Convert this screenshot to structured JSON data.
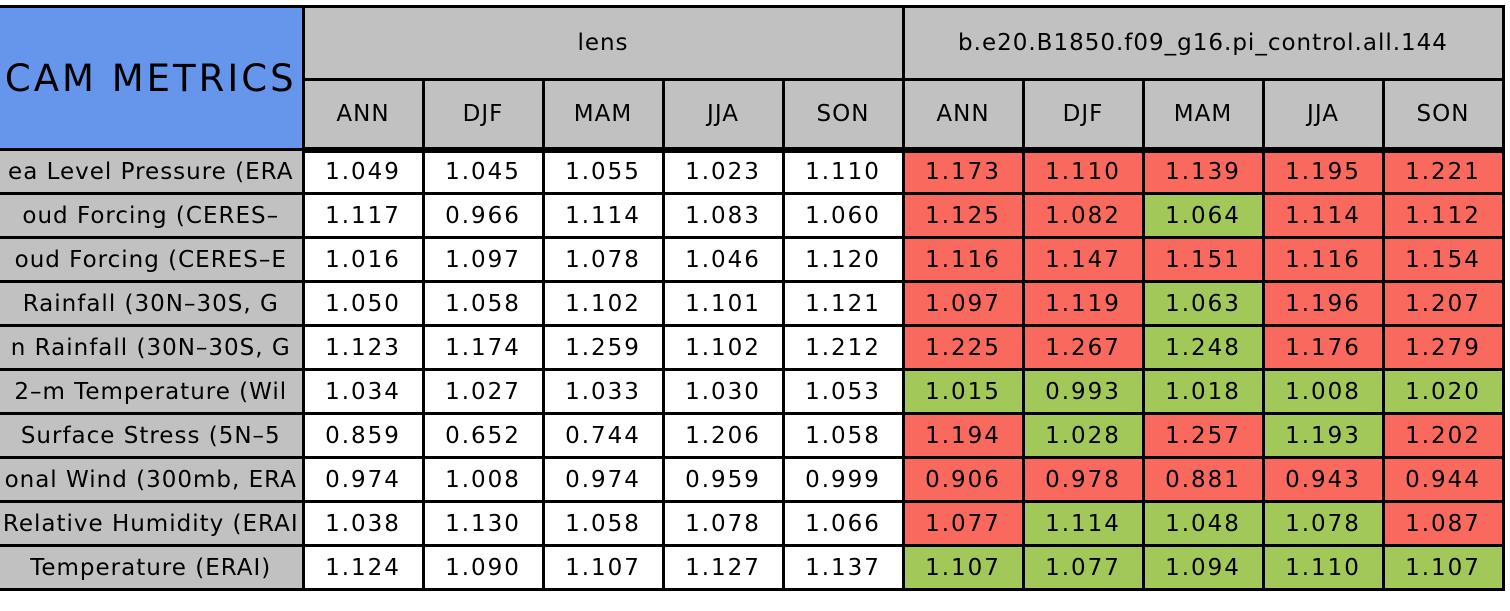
{
  "colors": {
    "title_bg": "#6596ec",
    "header_bg": "#c1c1c1",
    "label_bg": "#c1c1c1",
    "lens_cell_bg": "#ffffff",
    "red_cell": "#fa695e",
    "green_cell": "#a1c859",
    "border": "#000000"
  },
  "chart_data": {
    "type": "table",
    "title": "CAM METRICS",
    "column_groups": [
      {
        "label": "lens"
      },
      {
        "label": "b.e20.B1850.f09_g16.pi_control.all.144"
      }
    ],
    "columns": [
      "ANN",
      "DJF",
      "MAM",
      "JJA",
      "SON",
      "ANN",
      "DJF",
      "MAM",
      "JJA",
      "SON"
    ],
    "rows": [
      {
        "label": "ea Level Pressure (ERA",
        "lens": [
          "1.049",
          "1.045",
          "1.055",
          "1.023",
          "1.110"
        ],
        "control": [
          "1.173",
          "1.110",
          "1.139",
          "1.195",
          "1.221"
        ],
        "control_status": [
          "red",
          "red",
          "red",
          "red",
          "red"
        ]
      },
      {
        "label": "oud Forcing (CERES–",
        "lens": [
          "1.117",
          "0.966",
          "1.114",
          "1.083",
          "1.060"
        ],
        "control": [
          "1.125",
          "1.082",
          "1.064",
          "1.114",
          "1.112"
        ],
        "control_status": [
          "red",
          "red",
          "green",
          "red",
          "red"
        ]
      },
      {
        "label": "oud Forcing (CERES–E",
        "lens": [
          "1.016",
          "1.097",
          "1.078",
          "1.046",
          "1.120"
        ],
        "control": [
          "1.116",
          "1.147",
          "1.151",
          "1.116",
          "1.154"
        ],
        "control_status": [
          "red",
          "red",
          "red",
          "red",
          "red"
        ]
      },
      {
        "label": "Rainfall (30N–30S, G",
        "lens": [
          "1.050",
          "1.058",
          "1.102",
          "1.101",
          "1.121"
        ],
        "control": [
          "1.097",
          "1.119",
          "1.063",
          "1.196",
          "1.207"
        ],
        "control_status": [
          "red",
          "red",
          "green",
          "red",
          "red"
        ]
      },
      {
        "label": "n Rainfall (30N–30S, G",
        "lens": [
          "1.123",
          "1.174",
          "1.259",
          "1.102",
          "1.212"
        ],
        "control": [
          "1.225",
          "1.267",
          "1.248",
          "1.176",
          "1.279"
        ],
        "control_status": [
          "red",
          "red",
          "green",
          "red",
          "red"
        ]
      },
      {
        "label": "2–m Temperature (Wil",
        "lens": [
          "1.034",
          "1.027",
          "1.033",
          "1.030",
          "1.053"
        ],
        "control": [
          "1.015",
          "0.993",
          "1.018",
          "1.008",
          "1.020"
        ],
        "control_status": [
          "green",
          "green",
          "green",
          "green",
          "green"
        ]
      },
      {
        "label": "Surface Stress (5N–5",
        "lens": [
          "0.859",
          "0.652",
          "0.744",
          "1.206",
          "1.058"
        ],
        "control": [
          "1.194",
          "1.028",
          "1.257",
          "1.193",
          "1.202"
        ],
        "control_status": [
          "red",
          "green",
          "red",
          "green",
          "red"
        ]
      },
      {
        "label": "onal Wind (300mb, ERA",
        "lens": [
          "0.974",
          "1.008",
          "0.974",
          "0.959",
          "0.999"
        ],
        "control": [
          "0.906",
          "0.978",
          "0.881",
          "0.943",
          "0.944"
        ],
        "control_status": [
          "red",
          "red",
          "red",
          "red",
          "red"
        ]
      },
      {
        "label": "Relative Humidity (ERAI",
        "lens": [
          "1.038",
          "1.130",
          "1.058",
          "1.078",
          "1.066"
        ],
        "control": [
          "1.077",
          "1.114",
          "1.048",
          "1.078",
          "1.087"
        ],
        "control_status": [
          "red",
          "green",
          "green",
          "green",
          "red"
        ]
      },
      {
        "label": "Temperature (ERAI)",
        "lens": [
          "1.124",
          "1.090",
          "1.107",
          "1.127",
          "1.137"
        ],
        "control": [
          "1.107",
          "1.077",
          "1.094",
          "1.110",
          "1.107"
        ],
        "control_status": [
          "green",
          "green",
          "green",
          "green",
          "green"
        ]
      }
    ]
  }
}
